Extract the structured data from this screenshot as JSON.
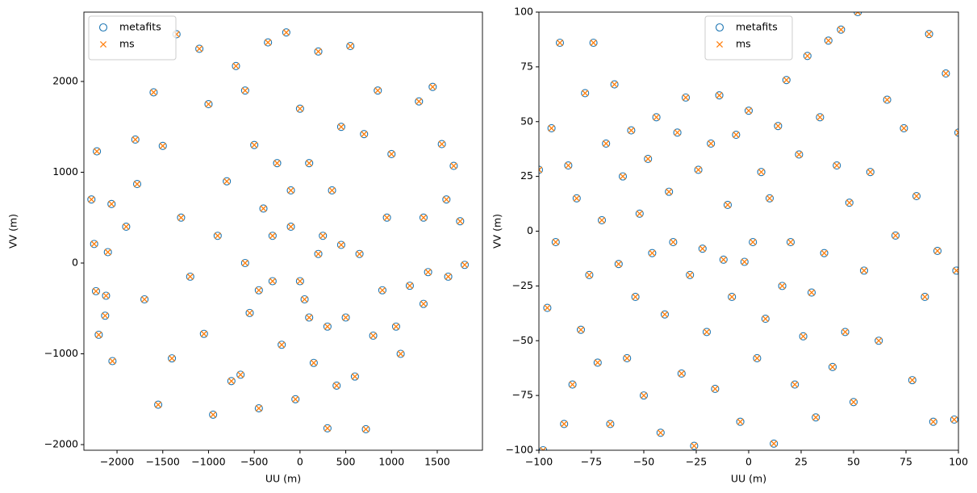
{
  "chart_data": [
    {
      "type": "scatter",
      "xlabel": "UU (m)",
      "ylabel": "VV (m)",
      "legend": "upper left",
      "xlim": [
        -2362,
        1994
      ],
      "ylim": [
        -2062,
        2764
      ],
      "xticks": [
        {
          "value": -2000,
          "label": "−2000"
        },
        {
          "value": -1500,
          "label": "−1500"
        },
        {
          "value": -1000,
          "label": "−1000"
        },
        {
          "value": -500,
          "label": "−500"
        },
        0,
        500,
        1000,
        1500
      ],
      "yticks": [
        {
          "value": -2000,
          "label": "−2000"
        },
        {
          "value": -1000,
          "label": "−1000"
        },
        0,
        1000,
        2000
      ],
      "x": [
        -2280,
        -2250,
        -2220,
        -2230,
        -2200,
        -2130,
        -2120,
        -2100,
        -2050,
        -2060,
        -1900,
        -1800,
        -1780,
        -1700,
        -1600,
        -1550,
        -1500,
        -1400,
        -1350,
        -1300,
        -1200,
        -1100,
        -1050,
        -1000,
        -950,
        -900,
        -800,
        -750,
        -700,
        -650,
        -600,
        -550,
        -500,
        -450,
        -400,
        -350,
        -300,
        -250,
        -200,
        -150,
        -100,
        -50,
        0,
        50,
        100,
        150,
        200,
        250,
        300,
        350,
        400,
        450,
        500,
        550,
        600,
        650,
        700,
        720,
        800,
        850,
        900,
        950,
        1000,
        1050,
        1100,
        1200,
        1300,
        1350,
        1400,
        1550,
        1600,
        1680,
        1750,
        1800,
        1620,
        1350,
        1450,
        -600,
        -300,
        0,
        200,
        -450,
        300,
        -100,
        100,
        450
      ],
      "series": [
        {
          "name": "metafits",
          "color": "#1f77b4",
          "marker": "circle",
          "values": [
            700,
            210,
            1230,
            -310,
            -790,
            -580,
            -360,
            120,
            -1080,
            650,
            400,
            1360,
            870,
            -400,
            1880,
            -1560,
            1290,
            -1050,
            2520,
            500,
            -150,
            2360,
            -780,
            1750,
            -1670,
            300,
            900,
            -1300,
            2170,
            -1230,
            1900,
            -550,
            1300,
            -1600,
            600,
            2430,
            -200,
            1100,
            -900,
            2540,
            400,
            -1500,
            1700,
            -400,
            1100,
            -1100,
            2330,
            300,
            -1820,
            800,
            -1350,
            1500,
            -600,
            2390,
            -1250,
            100,
            1420,
            -1830,
            -800,
            1900,
            -300,
            500,
            1200,
            -700,
            -1000,
            -250,
            1780,
            500,
            -100,
            1310,
            700,
            1070,
            460,
            -20,
            -150,
            -450,
            1940,
            0,
            300,
            -200,
            100,
            -300,
            -700,
            800,
            -600,
            200
          ]
        },
        {
          "name": "ms",
          "color": "#ff7f0e",
          "marker": "x",
          "values": [
            700,
            210,
            1230,
            -310,
            -790,
            -580,
            -360,
            120,
            -1080,
            650,
            400,
            1360,
            870,
            -400,
            1880,
            -1560,
            1290,
            -1050,
            2520,
            500,
            -150,
            2360,
            -780,
            1750,
            -1670,
            300,
            900,
            -1300,
            2170,
            -1230,
            1900,
            -550,
            1300,
            -1600,
            600,
            2430,
            -200,
            1100,
            -900,
            2540,
            400,
            -1500,
            1700,
            -400,
            1100,
            -1100,
            2330,
            300,
            -1820,
            800,
            -1350,
            1500,
            -600,
            2390,
            -1250,
            100,
            1420,
            -1830,
            -800,
            1900,
            -300,
            500,
            1200,
            -700,
            -1000,
            -250,
            1780,
            500,
            -100,
            1310,
            700,
            1070,
            460,
            -20,
            -150,
            -450,
            1940,
            0,
            300,
            -200,
            100,
            -300,
            -700,
            800,
            -600,
            200
          ]
        }
      ]
    },
    {
      "type": "scatter",
      "xlabel": "UU (m)",
      "ylabel": "VV (m)",
      "legend": "upper center",
      "xlim": [
        -100,
        100
      ],
      "ylim": [
        -100,
        100
      ],
      "xticks": [
        {
          "value": -100,
          "label": "−100"
        },
        {
          "value": -75,
          "label": "−75"
        },
        {
          "value": -50,
          "label": "−50"
        },
        {
          "value": -25,
          "label": "−25"
        },
        0,
        25,
        50,
        75,
        100
      ],
      "yticks": [
        {
          "value": -100,
          "label": "−100"
        },
        {
          "value": -75,
          "label": "−75"
        },
        {
          "value": -50,
          "label": "−50"
        },
        {
          "value": -25,
          "label": "−25"
        },
        0,
        25,
        50,
        75,
        100
      ],
      "x": [
        -100,
        -98,
        -96,
        -94,
        -92,
        -90,
        -88,
        -86,
        -84,
        -82,
        -80,
        -78,
        -76,
        -74,
        -72,
        -70,
        -68,
        -66,
        -64,
        -62,
        -60,
        -58,
        -56,
        -54,
        -52,
        -50,
        -48,
        -46,
        -44,
        -42,
        -40,
        -38,
        -36,
        -34,
        -32,
        -30,
        -28,
        -26,
        -24,
        -22,
        -20,
        -18,
        -16,
        -14,
        -12,
        -10,
        -8,
        -6,
        -4,
        -2,
        0,
        2,
        4,
        6,
        8,
        10,
        12,
        14,
        16,
        18,
        20,
        22,
        24,
        26,
        28,
        30,
        32,
        34,
        36,
        38,
        40,
        42,
        44,
        46,
        48,
        50,
        52,
        55,
        58,
        62,
        66,
        70,
        74,
        78,
        80,
        84,
        86,
        88,
        90,
        94,
        98,
        99,
        100
      ],
      "series": [
        {
          "name": "metafits",
          "color": "#1f77b4",
          "marker": "circle",
          "values": [
            28,
            -100,
            -35,
            47,
            -5,
            86,
            -88,
            30,
            -70,
            15,
            -45,
            63,
            -20,
            86,
            -60,
            5,
            40,
            -88,
            67,
            -15,
            25,
            -58,
            46,
            -30,
            8,
            -75,
            33,
            -10,
            52,
            -92,
            -38,
            18,
            -5,
            45,
            -65,
            61,
            -20,
            -98,
            28,
            -8,
            -46,
            40,
            -72,
            62,
            -13,
            12,
            -30,
            44,
            -87,
            -14,
            55,
            -5,
            -58,
            27,
            -40,
            15,
            -97,
            48,
            -25,
            69,
            -5,
            -70,
            35,
            -48,
            80,
            -28,
            -85,
            52,
            -10,
            87,
            -62,
            30,
            92,
            -46,
            13,
            -78,
            100,
            -18,
            27,
            -50,
            60,
            -2,
            47,
            -68,
            16,
            -30,
            90,
            -87,
            -9,
            72,
            -86,
            -18,
            45
          ]
        },
        {
          "name": "ms",
          "color": "#ff7f0e",
          "marker": "x",
          "values": [
            28,
            -100,
            -35,
            47,
            -5,
            86,
            -88,
            30,
            -70,
            15,
            -45,
            63,
            -20,
            86,
            -60,
            5,
            40,
            -88,
            67,
            -15,
            25,
            -58,
            46,
            -30,
            8,
            -75,
            33,
            -10,
            52,
            -92,
            -38,
            18,
            -5,
            45,
            -65,
            61,
            -20,
            -98,
            28,
            -8,
            -46,
            40,
            -72,
            62,
            -13,
            12,
            -30,
            44,
            -87,
            -14,
            55,
            -5,
            -58,
            27,
            -40,
            15,
            -97,
            48,
            -25,
            69,
            -5,
            -70,
            35,
            -48,
            80,
            -28,
            -85,
            52,
            -10,
            87,
            -62,
            30,
            92,
            -46,
            13,
            -78,
            100,
            -18,
            27,
            -50,
            60,
            -2,
            47,
            -68,
            16,
            -30,
            90,
            -87,
            -9,
            72,
            -86,
            -18,
            45
          ]
        }
      ]
    }
  ]
}
